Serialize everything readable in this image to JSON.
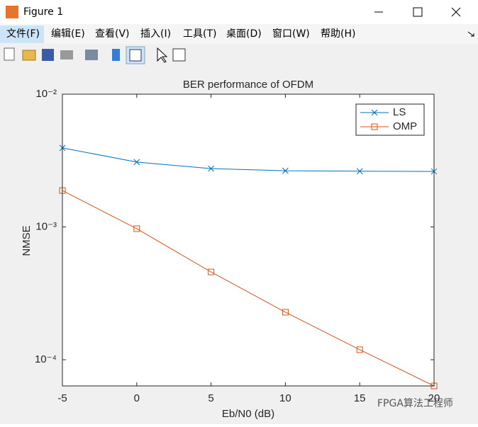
{
  "window": {
    "title": "Figure 1",
    "menu": [
      "文件(F)",
      "编辑(E)",
      "查看(V)",
      "插入(I)",
      "工具(T)",
      "桌面(D)",
      "窗口(W)",
      "帮助(H)"
    ]
  },
  "chart_data": {
    "type": "line",
    "title": "BER performance of OFDM",
    "x_label": "Eb/N0 (dB)",
    "y_label": "NMSE",
    "x": [
      -5,
      0,
      5,
      10,
      15,
      20
    ],
    "series": [
      {
        "name": "LS",
        "color": "#0072BD",
        "marker": "x",
        "values": [
          0.00394,
          0.00308,
          0.00275,
          0.00265,
          0.00263,
          0.00262
        ]
      },
      {
        "name": "OMP",
        "color": "#D95319",
        "marker": "square",
        "values": [
          0.00188,
          0.00097,
          0.000458,
          0.000228,
          0.000119,
          6.35e-05
        ]
      }
    ],
    "xlim": [
      -5,
      20
    ],
    "xticks": [
      -5,
      0,
      5,
      10,
      15,
      20
    ],
    "ylim": [
      6.35e-05,
      0.01
    ],
    "y_scale": "log",
    "yticks": [
      {
        "value": 0.0001,
        "label": "10⁻⁴"
      },
      {
        "value": 0.001,
        "label": "10⁻³"
      },
      {
        "value": 0.01,
        "label": "10⁻²"
      }
    ],
    "legend": "northeast",
    "grid": false
  },
  "watermark": "FPGA算法工程师"
}
